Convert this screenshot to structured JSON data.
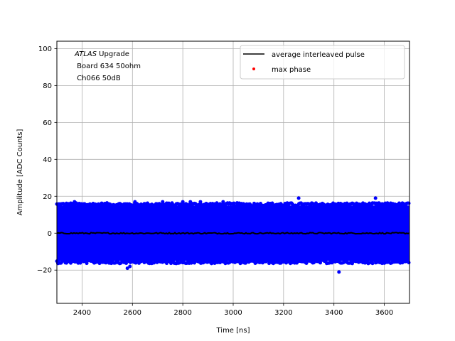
{
  "chart_data": {
    "type": "scatter",
    "xlabel": "Time [ns]",
    "ylabel": "Amplitude [ADC Counts]",
    "xlim": [
      2300,
      3700
    ],
    "ylim": [
      -38,
      104
    ],
    "xticks": [
      2400,
      2600,
      2800,
      3000,
      3200,
      3400,
      3600
    ],
    "yticks": [
      -20,
      0,
      20,
      40,
      60,
      80,
      100
    ],
    "xtick_labels": [
      "2400",
      "2600",
      "2800",
      "3000",
      "3200",
      "3400",
      "3600"
    ],
    "ytick_labels": [
      "−20",
      "0",
      "20",
      "40",
      "60",
      "80",
      "100"
    ],
    "grid": true,
    "legend_position": "top-right",
    "annotation": {
      "italic_part": "ATLAS",
      "line1_rest": " Upgrade",
      "line2": " Board 634 50ohm",
      "line3": " Ch066 50dB"
    },
    "series": [
      {
        "name": "average interleaved pulse",
        "kind": "line",
        "color": "#000000",
        "x": [
          2300,
          3700
        ],
        "y": [
          0,
          0
        ]
      },
      {
        "name": "max phase",
        "kind": "scatter",
        "color": "#ff0000",
        "x": [],
        "y": []
      },
      {
        "name": "",
        "kind": "scatter",
        "color": "#0000ff",
        "band_min": -15,
        "band_max": 15,
        "outliers_x": [
          2370,
          2610,
          2720,
          2800,
          2830,
          2870,
          2960,
          3260,
          3420,
          3565,
          2580,
          2590
        ],
        "outliers_y": [
          17,
          17,
          17,
          17,
          17,
          17,
          17,
          19,
          -21,
          19,
          -19,
          -18
        ]
      }
    ]
  }
}
